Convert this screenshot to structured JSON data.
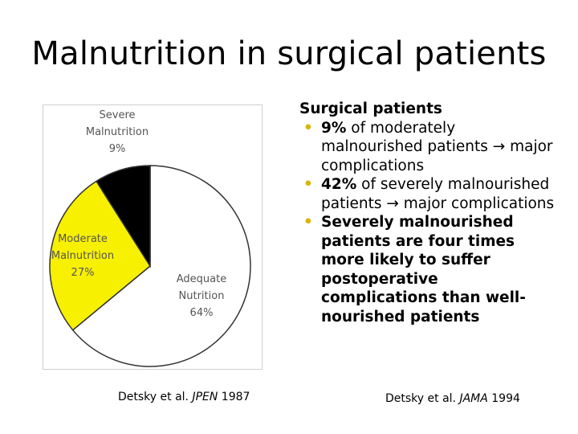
{
  "slide": {
    "title": "Malnutrition in surgical patients"
  },
  "chart_data": {
    "type": "pie",
    "categories": [
      "Adequate Nutrition",
      "Moderate Malnutrition",
      "Severe Malnutrition"
    ],
    "values": [
      64,
      27,
      9
    ],
    "colors": [
      "#ffffff",
      "#f7f000",
      "#000000"
    ],
    "labels": [
      [
        "Adequate",
        "Nutrition",
        "64%"
      ],
      [
        "Moderate",
        "Malnutrition",
        "27%"
      ],
      [
        "Severe",
        "Malnutrition",
        "9%"
      ]
    ]
  },
  "citations": {
    "left_prefix": "Detsky et al. ",
    "left_journal": "JPEN",
    "left_year": " 1987",
    "right_prefix": "Detsky et al. ",
    "right_journal": "JAMA",
    "right_year": " 1994"
  },
  "bullets": {
    "heading": "Surgical patients",
    "items": [
      {
        "bold": "9%",
        "rest": " of moderately malnourished patients → major complications"
      },
      {
        "bold": "42%",
        "rest": " of severely malnourished patients → major complications"
      },
      {
        "bold": "Severely malnourished patients are four times more likely to suffer postoperative complications than well-nourished patients",
        "rest": ""
      }
    ],
    "bullet_color": "#d9b400"
  }
}
